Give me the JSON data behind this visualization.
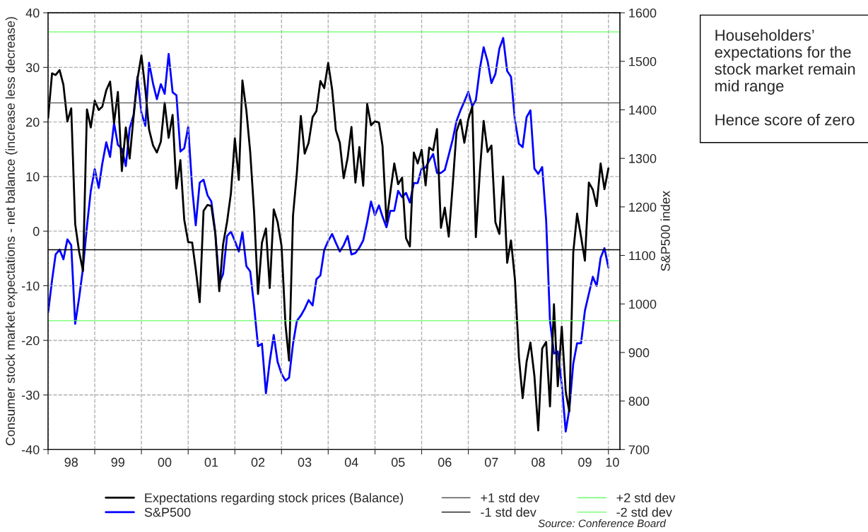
{
  "chart_data": {
    "type": "line",
    "ylabel": "Consumer stock market expectations - net balance (increase less decrease)",
    "y2label": "S&P500 index",
    "annotations": [
      "Householders’ expectations for the stock market remain mid range\n\nHence score of zero",
      "Source: Conference Board"
    ],
    "xlim": [
      "1998-01",
      "2010-04"
    ],
    "xticks": [
      {
        "value": "1998-01",
        "label": null
      },
      {
        "value": "1998-07",
        "label": "98"
      },
      {
        "value": "1999-01",
        "label": null
      },
      {
        "value": "1999-07",
        "label": "99"
      },
      {
        "value": "2000-01",
        "label": null
      },
      {
        "value": "2000-07",
        "label": "00"
      },
      {
        "value": "2001-01",
        "label": null
      },
      {
        "value": "2001-07",
        "label": "01"
      },
      {
        "value": "2002-01",
        "label": null
      },
      {
        "value": "2002-07",
        "label": "02"
      },
      {
        "value": "2003-01",
        "label": null
      },
      {
        "value": "2003-07",
        "label": "03"
      },
      {
        "value": "2004-01",
        "label": null
      },
      {
        "value": "2004-07",
        "label": "04"
      },
      {
        "value": "2005-01",
        "label": null
      },
      {
        "value": "2005-07",
        "label": "05"
      },
      {
        "value": "2006-01",
        "label": null
      },
      {
        "value": "2006-07",
        "label": "06"
      },
      {
        "value": "2007-01",
        "label": null
      },
      {
        "value": "2007-07",
        "label": "07"
      },
      {
        "value": "2008-01",
        "label": null
      },
      {
        "value": "2008-07",
        "label": "08"
      },
      {
        "value": "2009-01",
        "label": null
      },
      {
        "value": "2009-07",
        "label": "09"
      },
      {
        "value": "2010-01",
        "label": null
      },
      {
        "value": "2010-02",
        "label": "10"
      }
    ],
    "ylim": [
      -40,
      40
    ],
    "yticks": [
      -40,
      -30,
      -20,
      -10,
      0,
      10,
      20,
      30,
      40
    ],
    "y2lim": [
      700,
      1600
    ],
    "y2ticks": [
      700,
      800,
      900,
      1000,
      1100,
      1200,
      1300,
      1400,
      1500,
      1600
    ],
    "grid": true,
    "legend": "bottom",
    "x": [
      "1998-01",
      "1998-02",
      "1998-03",
      "1998-04",
      "1998-05",
      "1998-06",
      "1998-07",
      "1998-08",
      "1998-09",
      "1998-10",
      "1998-11",
      "1998-12",
      "1999-01",
      "1999-02",
      "1999-03",
      "1999-04",
      "1999-05",
      "1999-06",
      "1999-07",
      "1999-08",
      "1999-09",
      "1999-10",
      "1999-11",
      "1999-12",
      "2000-01",
      "2000-02",
      "2000-03",
      "2000-04",
      "2000-05",
      "2000-06",
      "2000-07",
      "2000-08",
      "2000-09",
      "2000-10",
      "2000-11",
      "2000-12",
      "2001-01",
      "2001-02",
      "2001-03",
      "2001-04",
      "2001-05",
      "2001-06",
      "2001-07",
      "2001-08",
      "2001-09",
      "2001-10",
      "2001-11",
      "2001-12",
      "2002-01",
      "2002-02",
      "2002-03",
      "2002-04",
      "2002-05",
      "2002-06",
      "2002-07",
      "2002-08",
      "2002-09",
      "2002-10",
      "2002-11",
      "2002-12",
      "2003-01",
      "2003-02",
      "2003-03",
      "2003-04",
      "2003-05",
      "2003-06",
      "2003-07",
      "2003-08",
      "2003-09",
      "2003-10",
      "2003-11",
      "2003-12",
      "2004-01",
      "2004-02",
      "2004-03",
      "2004-04",
      "2004-05",
      "2004-06",
      "2004-07",
      "2004-08",
      "2004-09",
      "2004-10",
      "2004-11",
      "2004-12",
      "2005-01",
      "2005-02",
      "2005-03",
      "2005-04",
      "2005-05",
      "2005-06",
      "2005-07",
      "2005-08",
      "2005-09",
      "2005-10",
      "2005-11",
      "2005-12",
      "2006-01",
      "2006-02",
      "2006-03",
      "2006-04",
      "2006-05",
      "2006-06",
      "2006-07",
      "2006-08",
      "2006-09",
      "2006-10",
      "2006-11",
      "2006-12",
      "2007-01",
      "2007-02",
      "2007-03",
      "2007-04",
      "2007-05",
      "2007-06",
      "2007-07",
      "2007-08",
      "2007-09",
      "2007-10",
      "2007-11",
      "2007-12",
      "2008-01",
      "2008-02",
      "2008-03",
      "2008-04",
      "2008-05",
      "2008-06",
      "2008-07",
      "2008-08",
      "2008-09",
      "2008-10",
      "2008-11",
      "2008-12",
      "2009-01",
      "2009-02",
      "2009-03",
      "2009-04",
      "2009-05",
      "2009-06",
      "2009-07",
      "2009-08",
      "2009-09",
      "2009-10",
      "2009-11",
      "2009-12",
      "2010-01"
    ],
    "series": [
      {
        "name": "Expectations regarding stock prices (Balance)",
        "color": "#000000",
        "values": [
          20.7,
          28.9,
          28.6,
          29.5,
          26.8,
          20.1,
          22.5,
          1.3,
          -3.8,
          -7.3,
          22.3,
          19.0,
          23.9,
          22.2,
          22.8,
          25.8,
          27.4,
          19.8,
          25.5,
          11.0,
          19.0,
          13.3,
          21.0,
          27.8,
          32.2,
          25.9,
          18.6,
          15.7,
          14.4,
          16.4,
          23.5,
          17.1,
          21.3,
          7.8,
          13.0,
          2.1,
          -2.0,
          -2.1,
          -7.0,
          -13.0,
          3.7,
          4.8,
          4.6,
          -0.5,
          -11.0,
          -2.4,
          1.7,
          6.9,
          17.0,
          9.4,
          27.6,
          22.1,
          14.5,
          3.3,
          -11.5,
          -2.1,
          0.5,
          -10.4,
          4.0,
          1.7,
          -2.7,
          -17.1,
          -23.7,
          2.9,
          10.7,
          21.1,
          14.2,
          16.2,
          20.9,
          22.0,
          27.5,
          26.2,
          30.8,
          25.9,
          18.5,
          16.2,
          9.7,
          13.4,
          19.1,
          8.9,
          15.4,
          8.3,
          23.3,
          19.4,
          20.1,
          19.9,
          15.6,
          1.7,
          7.1,
          12.4,
          8.6,
          9.8,
          -1.3,
          -2.8,
          14.4,
          12.4,
          14.9,
          8.4,
          15.3,
          14.8,
          18.7,
          0.6,
          4.3,
          -1.0,
          8.5,
          18.3,
          20.4,
          16.2,
          20.5,
          22.8,
          -1.1,
          10.8,
          20.2,
          14.5,
          15.7,
          1.6,
          -0.5,
          10.0,
          -5.8,
          -1.7,
          -8.9,
          -23.1,
          -30.6,
          -23.9,
          -20.4,
          -26.5,
          -36.5,
          -21.5,
          -20.3,
          -32.1,
          -13.4,
          -28.4,
          -17.5,
          -29.4,
          -33.0,
          -3.9,
          3.2,
          -1.0,
          -5.4,
          8.9,
          7.6,
          4.6,
          12.4,
          7.7,
          11.5
        ]
      },
      {
        "name": "S&P500",
        "color": "#0000ff",
        "axis": "y2",
        "values": [
          982,
          1049,
          1102,
          1112,
          1092,
          1133,
          1121,
          959,
          1013,
          1074,
          1160,
          1233,
          1278,
          1239,
          1289,
          1333,
          1303,
          1373,
          1328,
          1320,
          1284,
          1362,
          1390,
          1468,
          1394,
          1367,
          1497,
          1454,
          1422,
          1453,
          1433,
          1515,
          1436,
          1430,
          1314,
          1321,
          1365,
          1239,
          1162,
          1250,
          1256,
          1224,
          1211,
          1148,
          1042,
          1062,
          1140,
          1149,
          1130,
          1108,
          1148,
          1078,
          1067,
          994,
          913,
          918,
          816,
          882,
          936,
          881,
          856,
          842,
          848,
          918,
          965,
          976,
          990,
          1008,
          997,
          1051,
          1059,
          1111,
          1130,
          1144,
          1126,
          1108,
          1121,
          1140,
          1102,
          1105,
          1116,
          1131,
          1169,
          1211,
          1183,
          1203,
          1180,
          1158,
          1192,
          1192,
          1233,
          1220,
          1229,
          1209,
          1249,
          1249,
          1279,
          1281,
          1295,
          1309,
          1270,
          1270,
          1276,
          1307,
          1339,
          1377,
          1399,
          1417,
          1437,
          1407,
          1420,
          1484,
          1529,
          1500,
          1455,
          1474,
          1526,
          1548,
          1480,
          1468,
          1378,
          1330,
          1323,
          1385,
          1399,
          1279,
          1268,
          1282,
          1172,
          965,
          898,
          902,
          835,
          737,
          783,
          877,
          919,
          919,
          986,
          1021,
          1056,
          1037,
          1095,
          1115,
          1075
        ]
      }
    ],
    "ref_lines": [
      {
        "axis": "y",
        "value": 23.5,
        "label": "+1 std dev",
        "color": "#555555"
      },
      {
        "axis": "y",
        "value": -3.4,
        "label": "-1 std dev",
        "color": "#000000"
      },
      {
        "axis": "y",
        "value": 36.5,
        "label": "+2 std dev",
        "color": "#66ff66"
      },
      {
        "axis": "y",
        "value": -16.4,
        "label": "-2 std dev",
        "color": "#66ff66"
      }
    ]
  }
}
